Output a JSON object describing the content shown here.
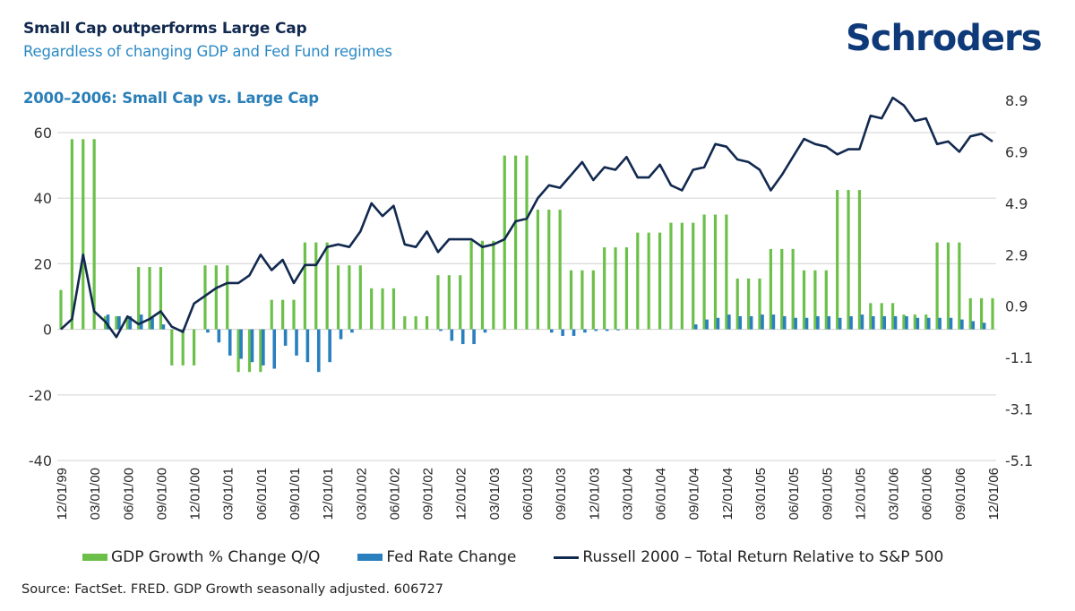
{
  "header": {
    "title": "Small Cap outperforms Large Cap",
    "subtitle": "Regardless of changing GDP and Fed Fund regimes",
    "section_title": "2000–2006: Small Cap vs. Large Cap",
    "logo": "Schroders"
  },
  "source": "Source: FactSet. FRED. GDP Growth seasonally adjusted. 606727",
  "colors": {
    "gdp": "#6cc04a",
    "fed": "#2a7fbf",
    "russell": "#12294f",
    "grid": "#d9d9d9",
    "logo": "#0f3a7a"
  },
  "chart_data": {
    "type": "bar",
    "title": "2000–2006: Small Cap vs. Large Cap",
    "xlabel": "",
    "ylabel_left": "",
    "ylabel_right": "",
    "ylim_left": [
      -40,
      60
    ],
    "yticks_left": [
      60,
      40,
      20,
      0,
      -20,
      -40
    ],
    "ylim_right": [
      -5.1,
      8.9
    ],
    "yticks_right": [
      "8.9",
      "6.9",
      "4.9",
      "2.9",
      "0.9",
      "-1.1",
      "-3.1",
      "-5.1"
    ],
    "grid": true,
    "legend_position": "bottom",
    "x_tick_labels": [
      "12/01/99",
      "03/01/00",
      "06/01/00",
      "09/01/00",
      "12/01/00",
      "03/01/01",
      "06/01/01",
      "09/01/01",
      "12/01/01",
      "03/01/02",
      "06/01/02",
      "09/01/02",
      "12/01/02",
      "03/01/03",
      "06/01/03",
      "09/01/03",
      "12/01/03",
      "03/01/04",
      "06/01/04",
      "09/01/04",
      "12/01/04",
      "03/01/05",
      "06/01/05",
      "09/01/05",
      "12/01/05",
      "03/01/06",
      "06/01/06",
      "09/01/06",
      "12/01/06"
    ],
    "x_note": "Monthly observations from 12/01/99 to 12/01/06 (85 points); ticks every 3 months",
    "series": [
      {
        "name": "GDP Growth % Change Q/Q",
        "type": "bar",
        "axis": "left",
        "values": [
          12,
          58,
          58,
          58,
          4,
          4,
          4,
          19,
          19,
          19,
          -11,
          -11,
          -11,
          19.5,
          19.5,
          19.5,
          -13,
          -13,
          -13,
          9,
          9,
          9,
          26.5,
          26.5,
          26.5,
          19.5,
          19.5,
          19.5,
          12.5,
          12.5,
          12.5,
          4,
          4,
          4,
          16.5,
          16.5,
          16.5,
          27,
          27,
          27,
          53,
          53,
          53,
          36.5,
          36.5,
          36.5,
          18,
          18,
          18,
          25,
          25,
          25,
          29.5,
          29.5,
          29.5,
          32.5,
          32.5,
          32.5,
          35,
          35,
          35,
          15.5,
          15.5,
          15.5,
          24.5,
          24.5,
          24.5,
          18,
          18,
          18,
          42.5,
          42.5,
          42.5,
          8,
          8,
          8,
          4.5,
          4.5,
          4.5,
          26.5,
          26.5,
          26.5,
          9.5,
          9.5,
          9.5
        ]
      },
      {
        "name": "Fed Rate Change",
        "type": "bar",
        "axis": "left",
        "values": [
          0,
          0,
          0,
          0,
          4.5,
          4,
          4,
          4.5,
          3.5,
          1.5,
          0,
          0,
          0,
          -1,
          -4,
          -8,
          -9,
          -10,
          -11,
          -12,
          -5,
          -8,
          -10,
          -13,
          -10,
          -3,
          -1,
          0,
          0,
          0,
          0,
          0,
          0,
          0,
          -0.5,
          -3.5,
          -4.5,
          -4.5,
          -1,
          0,
          0,
          0,
          0,
          0,
          -1,
          -2,
          -2,
          -1,
          -0.5,
          -0.5,
          -0.3,
          0,
          0,
          0,
          0,
          0,
          0,
          1.5,
          3,
          3.5,
          4.5,
          4,
          4,
          4.5,
          4.5,
          4,
          3.5,
          3.5,
          4,
          4,
          3.5,
          4,
          4.5,
          4,
          4,
          4,
          4,
          3.5,
          3.5,
          3.5,
          3.5,
          3,
          2.5,
          2,
          0
        ]
      },
      {
        "name": "Russell 2000 – Total Return Relative to S&P 500",
        "type": "line",
        "axis": "right",
        "values": [
          0,
          0.4,
          2.9,
          0.7,
          0.3,
          -0.3,
          0.5,
          0.2,
          0.4,
          0.7,
          0.1,
          -0.1,
          1.0,
          1.3,
          1.6,
          1.8,
          1.8,
          2.1,
          2.9,
          2.3,
          2.7,
          1.8,
          2.5,
          2.5,
          3.2,
          3.3,
          3.2,
          3.8,
          4.9,
          4.4,
          4.8,
          3.3,
          3.2,
          3.8,
          3.0,
          3.5,
          3.5,
          3.5,
          3.2,
          3.3,
          3.5,
          4.2,
          4.3,
          5.1,
          5.6,
          5.5,
          6.0,
          6.5,
          5.8,
          6.3,
          6.2,
          6.7,
          5.9,
          5.9,
          6.4,
          5.6,
          5.4,
          6.2,
          6.3,
          7.2,
          7.1,
          6.6,
          6.5,
          6.2,
          5.4,
          6.0,
          6.7,
          7.4,
          7.2,
          7.1,
          6.8,
          7.0,
          7.0,
          8.3,
          8.2,
          9.0,
          8.7,
          8.1,
          8.2,
          7.2,
          7.3,
          6.9,
          7.5,
          7.6,
          7.3
        ]
      }
    ]
  }
}
